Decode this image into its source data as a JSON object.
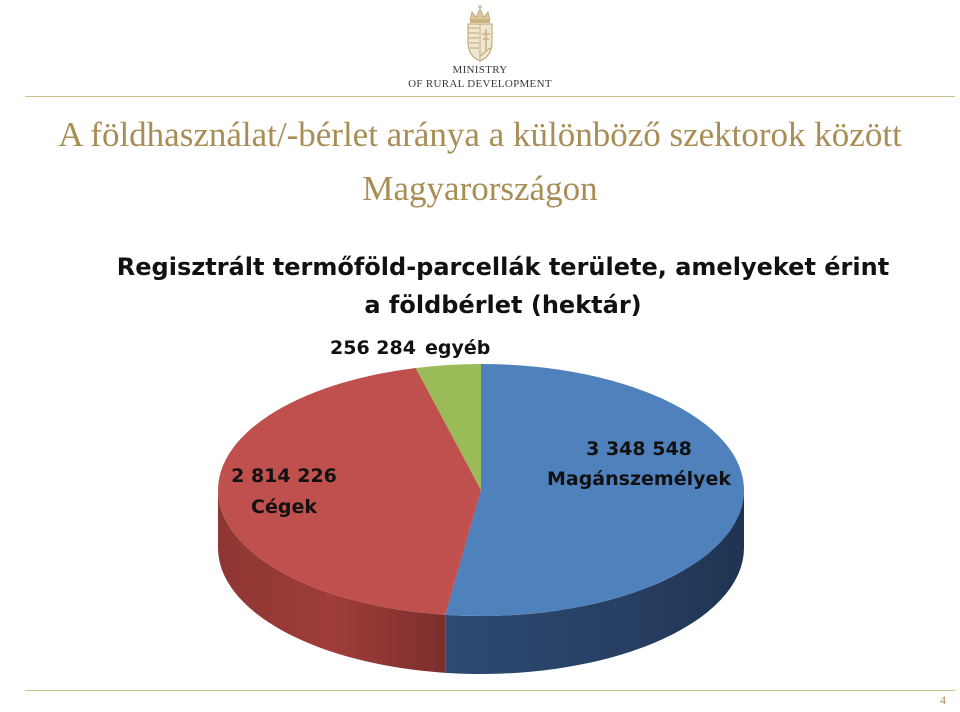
{
  "header": {
    "ministry_line1": "MINISTRY",
    "ministry_line2": "OF RURAL DEVELOPMENT",
    "crest_icon": "hungarian-coat-of-arms-icon"
  },
  "slide": {
    "title_line1": "A földhasználat/-bérlet aránya a különböző szektorok között",
    "title_line2": "Magyarországon",
    "page_number": "4"
  },
  "colors": {
    "title": "#a88d55",
    "rule": "#cdbf8e",
    "series_blue": "#4f81bd",
    "series_red": "#c0504d",
    "series_green": "#9bbb59"
  },
  "chart_data": {
    "type": "pie",
    "title_line1": "Regisztrált termőföld-parcellák területe, amelyeket érint",
    "title_line2": "a földbérlet (hektár)",
    "slices": [
      {
        "label_value": "3 348 548",
        "label_name": "Magánszemélyek",
        "value": 3348548,
        "color": "#4f81bd"
      },
      {
        "label_value": "2 814 226",
        "label_name": "Cégek",
        "value": 2814226,
        "color": "#c0504d"
      },
      {
        "label_value": "256 284",
        "label_name": "egyéb",
        "value": 256284,
        "color": "#9bbb59"
      }
    ],
    "style": "3d",
    "legend": "none"
  }
}
